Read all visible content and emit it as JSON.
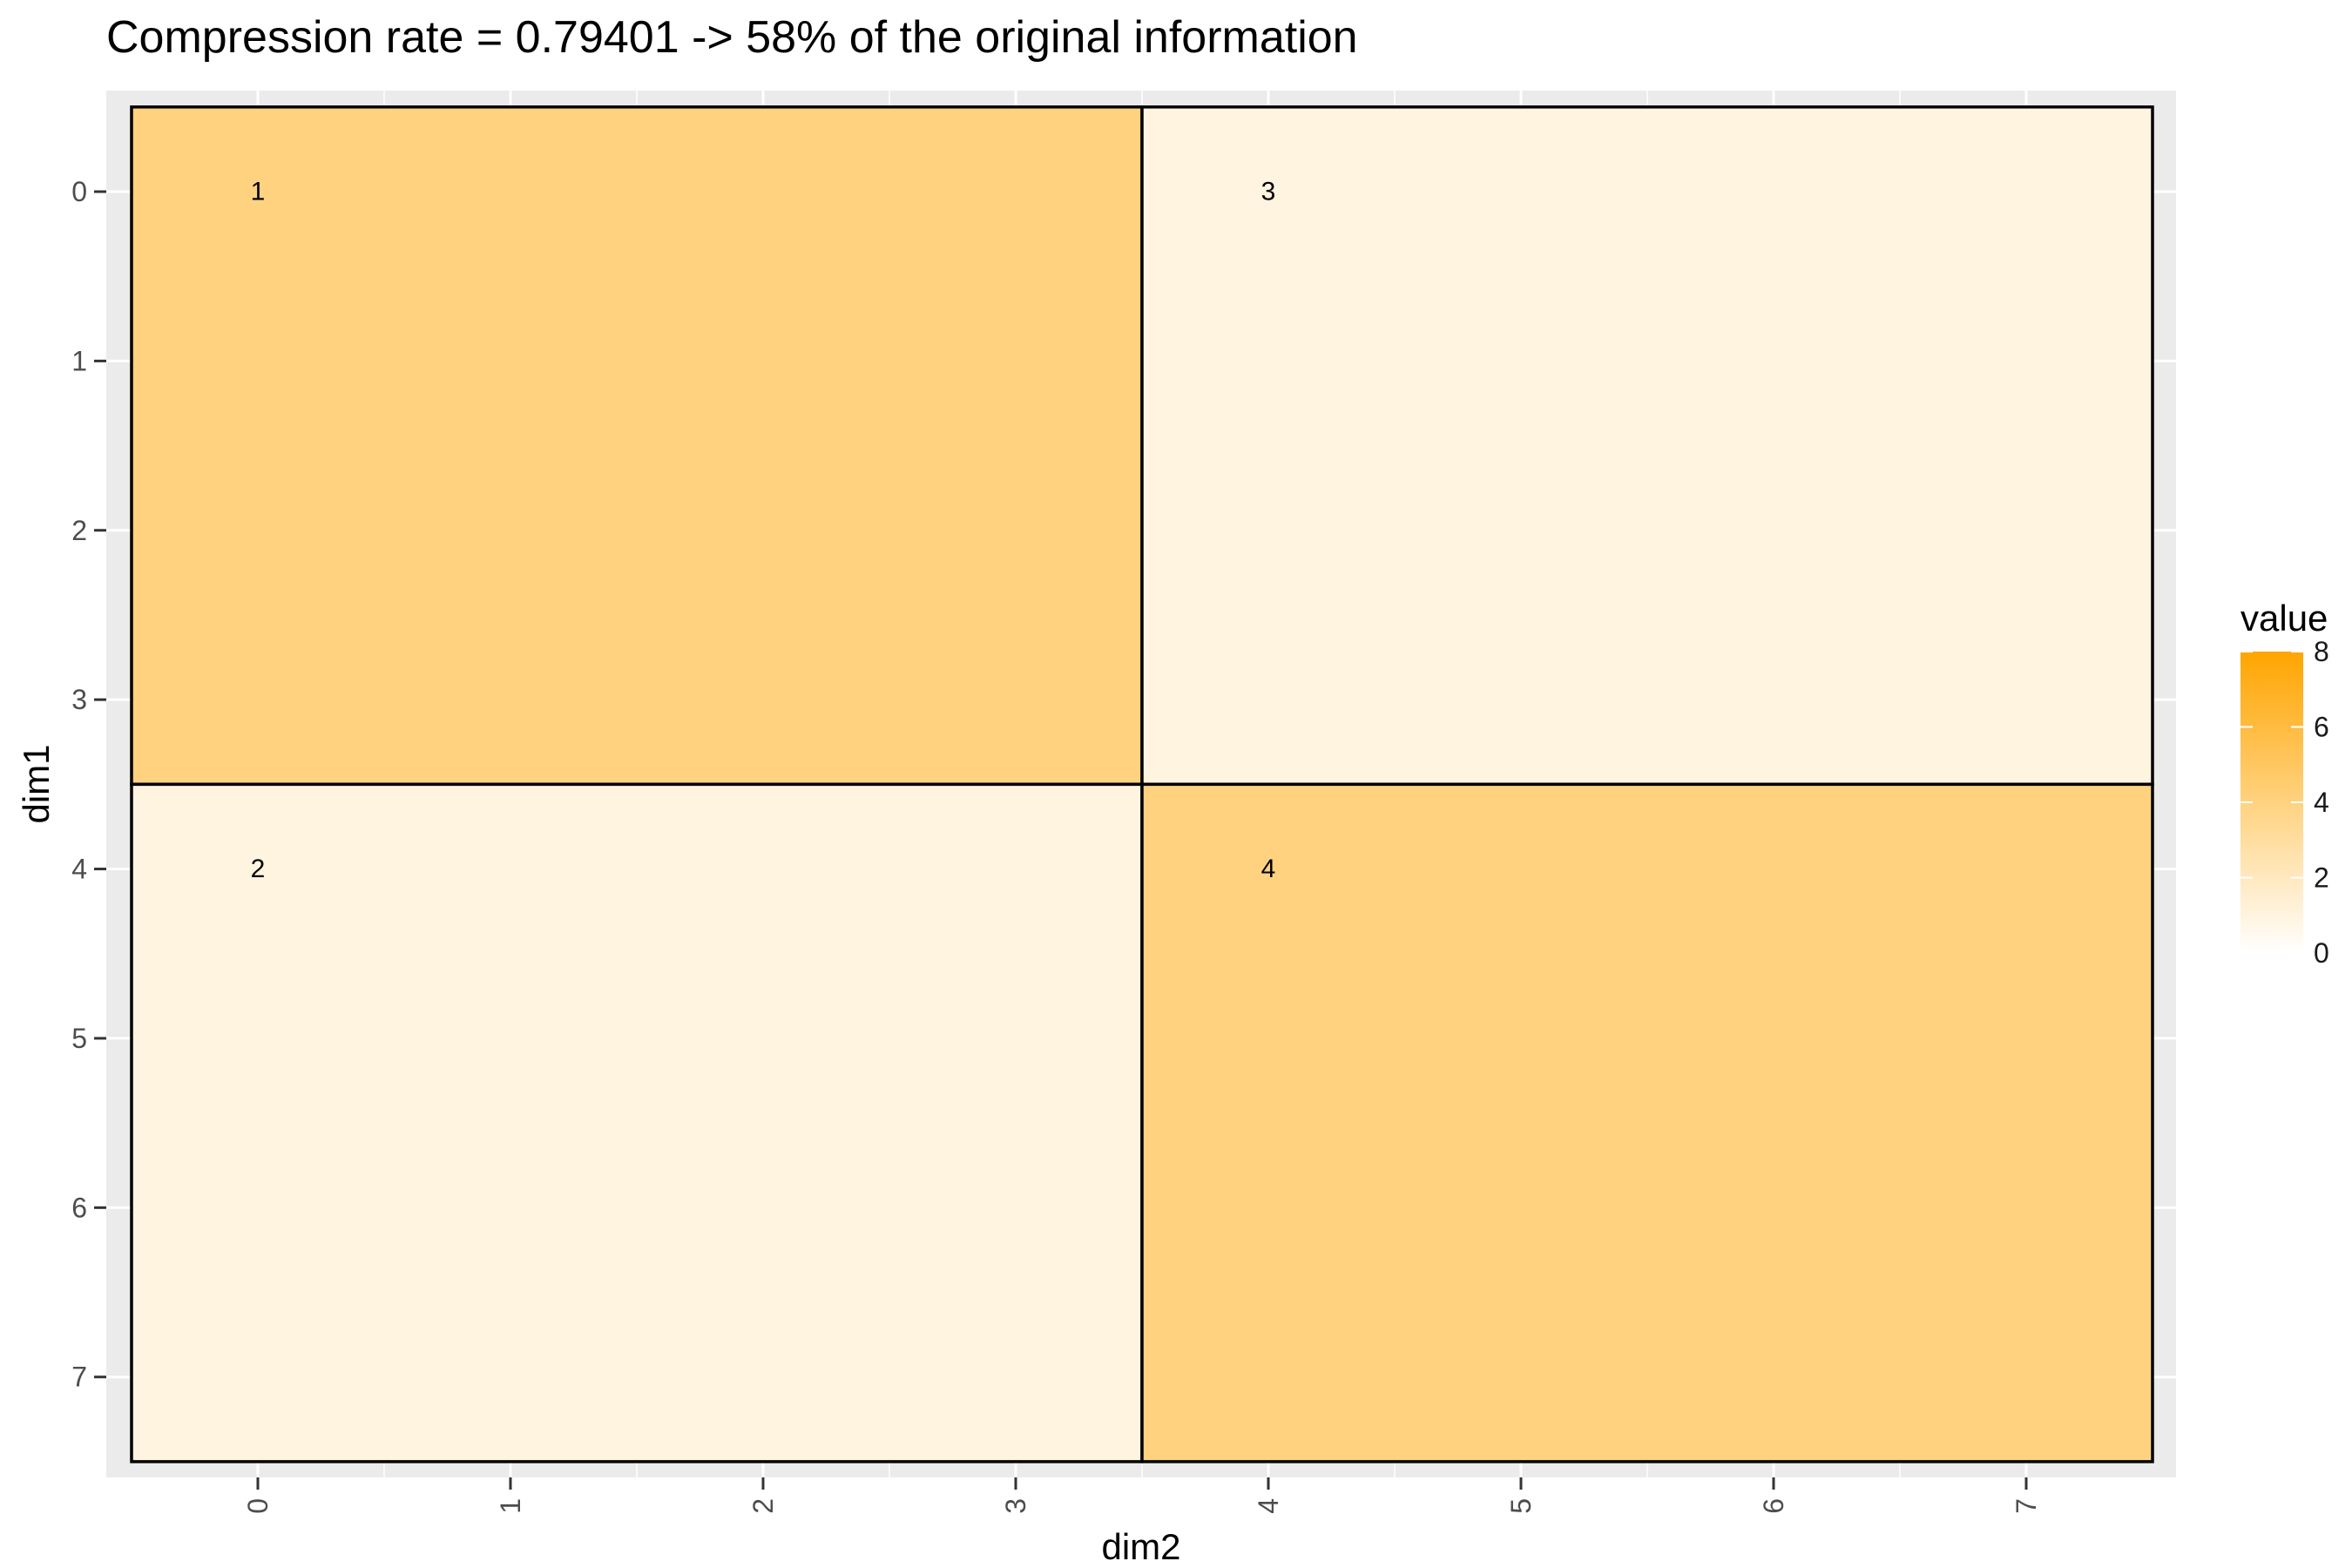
{
  "chart_data": {
    "type": "heatmap",
    "title": "Compression rate = 0.79401      ->      58% of the original information",
    "xlabel": "dim2",
    "ylabel": "dim1",
    "x_ticks": [
      "0",
      "1",
      "2",
      "3",
      "4",
      "5",
      "6",
      "7"
    ],
    "y_ticks": [
      "0",
      "1",
      "2",
      "3",
      "4",
      "5",
      "6",
      "7"
    ],
    "xlim": [
      -0.5,
      7.5
    ],
    "ylim": [
      -0.5,
      7.5
    ],
    "y_reversed": true,
    "grid": true,
    "color_scale": {
      "low": "#ffffff",
      "high": "#ffa500",
      "min": 0,
      "max": 8
    },
    "blocks": [
      {
        "label": "1",
        "dim1": [
          0,
          3
        ],
        "dim2": [
          0,
          3
        ],
        "value": 4
      },
      {
        "label": "3",
        "dim1": [
          0,
          3
        ],
        "dim2": [
          4,
          7
        ],
        "value": 1
      },
      {
        "label": "2",
        "dim1": [
          4,
          7
        ],
        "dim2": [
          0,
          3
        ],
        "value": 1
      },
      {
        "label": "4",
        "dim1": [
          4,
          7
        ],
        "dim2": [
          4,
          7
        ],
        "value": 4
      }
    ],
    "legend": {
      "title": "value",
      "position": "right",
      "ticks": [
        "0",
        "2",
        "4",
        "6",
        "8"
      ]
    }
  }
}
